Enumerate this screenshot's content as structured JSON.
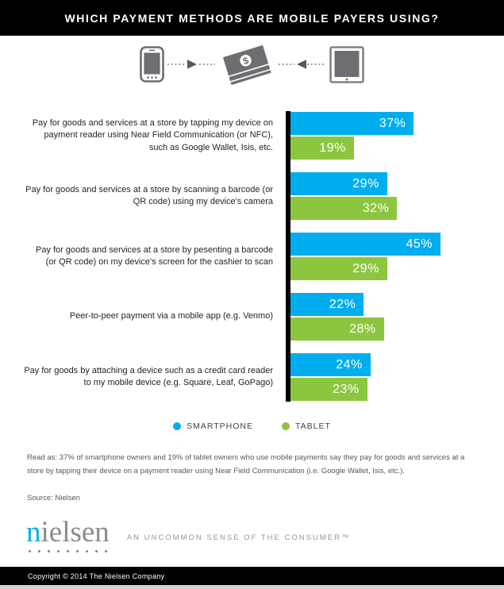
{
  "header": {
    "title": "WHICH PAYMENT METHODS ARE MOBILE PAYERS USING?"
  },
  "colors": {
    "smartphone_blue": "#00aeef",
    "tablet_green": "#8cc63f",
    "icon_gray": "#6d6e71",
    "axis_black": "#000000"
  },
  "chart_data": {
    "type": "bar",
    "orientation": "horizontal",
    "value_suffix": "%",
    "xlim": [
      0,
      50
    ],
    "categories": [
      "Pay for goods and services at a store by tapping my device on payment reader using Near Field Communication (or NFC), such as Google Wallet, Isis, etc.",
      "Pay for goods and services at a store by scanning a barcode (or QR code) using my device's camera",
      "Pay for goods and services at a store by pesenting a barcode (or QR code) on my device's screen for the cashier to scan",
      "Peer-to-peer payment via a mobile app (e.g. Venmo)",
      "Pay for goods by attaching a device such as a credit card reader to my mobile device (e.g. Square, Leaf, GoPago)"
    ],
    "series": [
      {
        "name": "SMARTPHONE",
        "color": "#00aeef",
        "values": [
          37,
          29,
          45,
          22,
          24
        ]
      },
      {
        "name": "TABLET",
        "color": "#8cc63f",
        "values": [
          19,
          32,
          29,
          28,
          23
        ]
      }
    ],
    "legend_position": "bottom-center",
    "grid": false
  },
  "legend": [
    {
      "label": "SMARTPHONE",
      "color": "#00aeef"
    },
    {
      "label": "TABLET",
      "color": "#8cc63f"
    }
  ],
  "notes": {
    "read_as": "Read as: 37% of smartphone owners and 19% of tablet owners who use mobile payments say they pay for goods and services at a store by tapping their device on a payment reader using Near Field Communication (i.e. Google Wallet, Isis, etc.).",
    "source": "Source: Nielsen"
  },
  "branding": {
    "logo_first": "n",
    "logo_rest": "ielsen",
    "tagline": "AN UNCOMMON SENSE OF THE CONSUMER™"
  },
  "footer": {
    "copyright": "Copyright © 2014 The Nielsen Company"
  }
}
